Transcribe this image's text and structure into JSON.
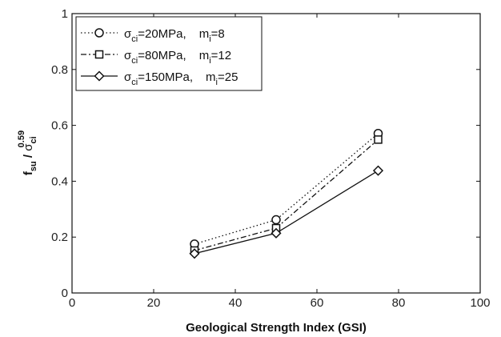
{
  "chart_data": {
    "type": "line",
    "xlabel": "Geological Strength Index (GSI)",
    "ylabel": {
      "main": "f",
      "main_sub": "su",
      "slash": " / ",
      "denom": "σ",
      "denom_sub": "ci",
      "denom_sup": "0.59"
    },
    "xlim": [
      0,
      100
    ],
    "ylim": [
      0,
      1
    ],
    "xticks": [
      "0",
      "20",
      "40",
      "60",
      "80",
      "100"
    ],
    "yticks": [
      "0",
      "0.2",
      "0.4",
      "0.6",
      "0.8",
      "1"
    ],
    "grid": false,
    "legend_position": "top-left",
    "x": [
      30,
      50,
      75
    ],
    "series": [
      {
        "name": "σci=20MPa, mi=8",
        "label_parts": {
          "sigma": "σ",
          "sigma_sub": "ci",
          "eq1": "=20MPa,",
          "m": "m",
          "m_sub": "i",
          "eq2": "=8"
        },
        "marker": "circle",
        "dash": "dotted",
        "values": [
          0.175,
          0.262,
          0.571
        ]
      },
      {
        "name": "σci=80MPa, mi=12",
        "label_parts": {
          "sigma": "σ",
          "sigma_sub": "ci",
          "eq1": "=80MPa,",
          "m": "m",
          "m_sub": "i",
          "eq2": "=12"
        },
        "marker": "square",
        "dash": "dashdot",
        "values": [
          0.152,
          0.232,
          0.549
        ]
      },
      {
        "name": "σci=150MPa, mi=25",
        "label_parts": {
          "sigma": "σ",
          "sigma_sub": "ci",
          "eq1": "=150MPa,",
          "m": "m",
          "m_sub": "i",
          "eq2": "=25"
        },
        "marker": "diamond",
        "dash": "solid",
        "values": [
          0.141,
          0.214,
          0.438
        ]
      }
    ],
    "colors": {
      "line": "#111111",
      "axis": "#111111",
      "background": "#ffffff"
    }
  }
}
